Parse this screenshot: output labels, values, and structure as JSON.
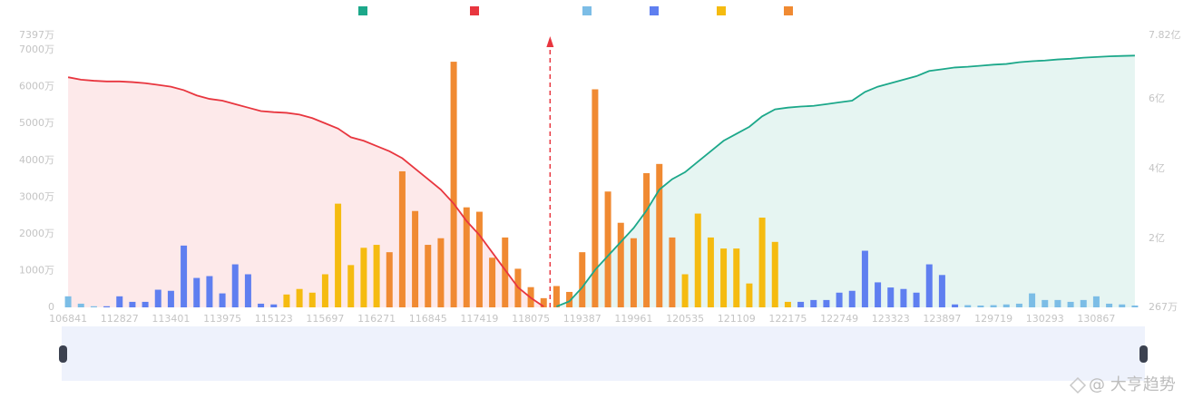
{
  "chart_data": {
    "type": "bar",
    "categories": [
      "106841",
      null,
      null,
      null,
      "112827",
      null,
      null,
      null,
      "113401",
      null,
      null,
      null,
      "113975",
      null,
      null,
      null,
      "115123",
      null,
      null,
      null,
      "115697",
      null,
      null,
      null,
      "116271",
      null,
      null,
      null,
      "116845",
      null,
      null,
      null,
      "117419",
      null,
      null,
      null,
      "118075",
      null,
      null,
      null,
      "119387",
      null,
      null,
      null,
      "119961",
      null,
      null,
      null,
      "120535",
      null,
      null,
      null,
      "121109",
      null,
      null,
      null,
      "122175",
      null,
      null,
      null,
      "122749",
      null,
      null,
      null,
      "123323",
      null,
      null,
      null,
      "123897",
      null,
      null,
      null,
      "129719",
      null,
      null,
      null,
      "130293",
      null,
      null,
      null,
      "130867",
      null,
      null,
      null
    ],
    "ylim": [
      0,
      7397
    ],
    "yticks": [
      0,
      {
        "value": 1000,
        "label": "1000万"
      },
      {
        "value": 2000,
        "label": "2000万"
      },
      {
        "value": 3000,
        "label": "3000万"
      },
      {
        "value": 4000,
        "label": "4000万"
      },
      {
        "value": 5000,
        "label": "5000万"
      },
      {
        "value": 6000,
        "label": "6000万"
      },
      {
        "value": 7000,
        "label": "7000万"
      },
      {
        "value": 7397,
        "label": "7397万"
      }
    ],
    "y2lim": [
      0.0267,
      7.82
    ],
    "y2ticks": [
      {
        "value": 0.0267,
        "label": "267万"
      },
      {
        "value": 2,
        "label": "2亿"
      },
      {
        "value": 4,
        "label": "4亿"
      },
      {
        "value": 6,
        "label": "6亿"
      },
      {
        "value": 7.82,
        "label": "7.82亿"
      }
    ],
    "grid": false,
    "series": [
      {
        "type": "line",
        "axis": "y2",
        "color": "#1ca88a",
        "area_color": "#e6f5f2",
        "values": [
          null,
          null,
          null,
          null,
          null,
          null,
          null,
          null,
          null,
          null,
          null,
          null,
          null,
          null,
          null,
          null,
          null,
          null,
          null,
          null,
          null,
          null,
          null,
          null,
          null,
          null,
          null,
          null,
          null,
          null,
          null,
          null,
          null,
          null,
          null,
          null,
          null,
          null,
          0.05,
          0.2,
          0.6,
          1.1,
          1.5,
          1.9,
          2.3,
          2.8,
          3.4,
          3.7,
          3.9,
          4.2,
          4.5,
          4.8,
          5.0,
          5.2,
          5.5,
          5.7,
          5.75,
          5.78,
          5.8,
          5.85,
          5.9,
          5.95,
          6.2,
          6.35,
          6.45,
          6.55,
          6.65,
          6.8,
          6.85,
          6.9,
          6.92,
          6.95,
          6.98,
          7.0,
          7.05,
          7.08,
          7.1,
          7.13,
          7.15,
          7.18,
          7.2,
          7.22,
          7.23,
          7.24
        ]
      },
      {
        "type": "line",
        "axis": "y2",
        "color": "#e8363f",
        "area_color": "#fde9ea",
        "values": [
          6.62,
          6.55,
          6.52,
          6.5,
          6.5,
          6.48,
          6.45,
          6.4,
          6.35,
          6.25,
          6.1,
          6.0,
          5.95,
          5.85,
          5.75,
          5.65,
          5.62,
          5.6,
          5.55,
          5.45,
          5.3,
          5.15,
          4.9,
          4.8,
          4.65,
          4.5,
          4.3,
          4.0,
          3.7,
          3.4,
          3.0,
          2.5,
          2.1,
          1.6,
          1.1,
          0.6,
          0.3,
          0.05,
          null,
          null,
          null,
          null,
          null,
          null,
          null,
          null,
          null,
          null,
          null,
          null,
          null,
          null,
          null,
          null,
          null,
          null,
          null,
          null,
          null,
          null,
          null,
          null,
          null,
          null,
          null,
          null,
          null,
          null,
          null,
          null,
          null,
          null,
          null,
          null,
          null,
          null,
          null,
          null,
          null,
          null,
          null,
          null,
          null,
          null
        ]
      },
      {
        "type": "bar",
        "color": "#7cbde6",
        "values": [
          300,
          100,
          30,
          null,
          null,
          null,
          null,
          null,
          null,
          null,
          null,
          null,
          null,
          null,
          null,
          null,
          null,
          null,
          null,
          null,
          null,
          null,
          null,
          null,
          null,
          null,
          null,
          null,
          null,
          null,
          null,
          null,
          null,
          null,
          null,
          null,
          null,
          null,
          null,
          null,
          null,
          null,
          null,
          null,
          null,
          null,
          null,
          null,
          null,
          null,
          null,
          null,
          null,
          null,
          null,
          null,
          null,
          null,
          null,
          null,
          null,
          null,
          null,
          null,
          null,
          null,
          null,
          null,
          null,
          null,
          60,
          50,
          60,
          80,
          100,
          380,
          200,
          200,
          150,
          200,
          300,
          100,
          80,
          50
        ]
      },
      {
        "type": "bar",
        "color": "#5f7ff0",
        "values": [
          null,
          null,
          null,
          30,
          300,
          150,
          150,
          480,
          450,
          1680,
          800,
          850,
          380,
          1170,
          900,
          100,
          80,
          null,
          null,
          null,
          null,
          null,
          null,
          null,
          null,
          null,
          null,
          null,
          null,
          null,
          null,
          null,
          null,
          null,
          null,
          null,
          null,
          null,
          null,
          null,
          null,
          null,
          null,
          null,
          null,
          null,
          null,
          null,
          null,
          null,
          null,
          null,
          null,
          null,
          null,
          null,
          null,
          150,
          200,
          200,
          400,
          450,
          1540,
          680,
          540,
          500,
          400,
          1170,
          880,
          80,
          null,
          null,
          null,
          null,
          null,
          null,
          null,
          null,
          null,
          null,
          null,
          null,
          null,
          null
        ]
      },
      {
        "type": "bar",
        "color": "#f5bb10",
        "values": [
          null,
          null,
          null,
          null,
          null,
          null,
          null,
          null,
          null,
          null,
          null,
          null,
          null,
          null,
          null,
          null,
          null,
          350,
          500,
          400,
          900,
          2820,
          1150,
          1620,
          1700,
          null,
          null,
          null,
          null,
          null,
          null,
          null,
          null,
          null,
          null,
          null,
          null,
          null,
          null,
          null,
          null,
          null,
          null,
          null,
          null,
          null,
          null,
          null,
          900,
          2550,
          1900,
          1600,
          1600,
          650,
          2440,
          1780,
          150,
          null,
          null,
          null,
          null,
          null,
          null,
          null,
          null,
          null,
          null,
          null,
          null,
          null,
          null,
          null,
          null,
          null,
          null,
          null,
          null,
          null,
          null,
          null,
          null,
          null,
          null,
          null
        ]
      },
      {
        "type": "bar",
        "color": "#f08a32",
        "values": [
          null,
          null,
          null,
          null,
          null,
          null,
          null,
          null,
          null,
          null,
          null,
          null,
          null,
          null,
          null,
          null,
          null,
          null,
          null,
          null,
          null,
          null,
          null,
          null,
          null,
          1500,
          3700,
          2620,
          1700,
          1880,
          6680,
          2720,
          2600,
          1350,
          1900,
          1050,
          550,
          250,
          580,
          420,
          1500,
          5930,
          3150,
          2300,
          1880,
          3650,
          3900,
          1900,
          null,
          null,
          null,
          null,
          null,
          null,
          null,
          null,
          null,
          null,
          null,
          null,
          null,
          null,
          null,
          null,
          null,
          null,
          null,
          null,
          null,
          null,
          null,
          null,
          null,
          null,
          null,
          null,
          null,
          null,
          null,
          null,
          null,
          null,
          null,
          null
        ]
      }
    ]
  },
  "watermark": "@ 大亨趋势"
}
